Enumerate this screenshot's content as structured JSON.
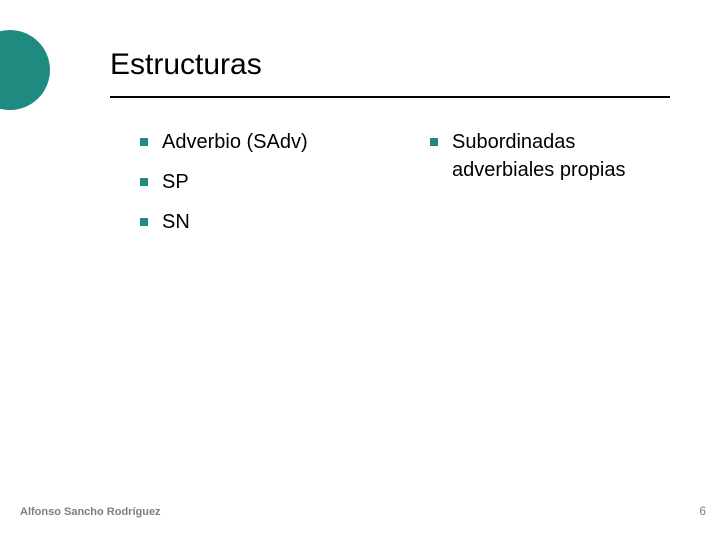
{
  "accent_color": "#1f8a80",
  "text_color": "#000000",
  "background_color": "#ffffff",
  "footer_text_color": "#7f7f7f",
  "title": "Estructuras",
  "title_fontsize": 30,
  "body_fontsize": 20,
  "footer_fontsize": 11,
  "bullet_marker_size": 8,
  "columns": {
    "left": [
      "Adverbio (SAdv)",
      "SP",
      "SN"
    ],
    "right": [
      "Subordinadas adverbiales propias"
    ]
  },
  "footer": {
    "author": "Alfonso Sancho Rodríguez",
    "page_number": "6"
  }
}
